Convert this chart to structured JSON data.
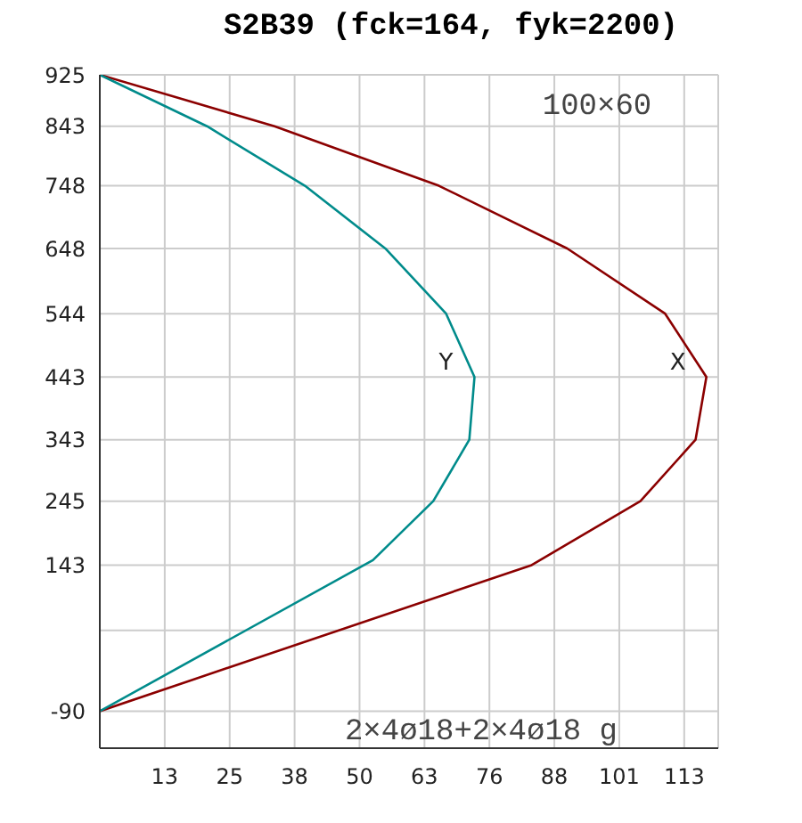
{
  "chart_data": {
    "type": "line",
    "title": "S2B39  (fck=164, fyk=2200)",
    "annotations": [
      "100×60",
      "2×4ø18+2×4ø18 g"
    ],
    "xlim": [
      0,
      120
    ],
    "xticks": [
      {
        "value": 12.6,
        "label": "13"
      },
      {
        "value": 25.2,
        "label": "25"
      },
      {
        "value": 37.8,
        "label": "38"
      },
      {
        "value": 50.4,
        "label": "50"
      },
      {
        "value": 63,
        "label": "63"
      },
      {
        "value": 75.6,
        "label": "76"
      },
      {
        "value": 88.2,
        "label": "88"
      },
      {
        "value": 100.8,
        "label": "101"
      },
      {
        "value": 113.4,
        "label": "113"
      },
      {
        "value": 120,
        "label": null
      }
    ],
    "ylim": [
      -149,
      925
    ],
    "yticks": [
      -90,
      {
        "value": 39,
        "label": null
      },
      143,
      245,
      343,
      443,
      544,
      648,
      748,
      843,
      925
    ],
    "grid": true,
    "legend": false,
    "marker": "none",
    "line_style": "solid",
    "series": [
      {
        "name": "X",
        "color": "#8b0000",
        "x": [
          0,
          33.9,
          65.8,
          90.7,
          109.7,
          117.7,
          115.6,
          104.9,
          83.8,
          0
        ],
        "values": [
          925,
          843,
          748,
          648,
          544,
          443,
          343,
          245,
          143,
          -90
        ]
      },
      {
        "name": "Y",
        "color": "#008b8b",
        "x": [
          0,
          20.8,
          39.8,
          55.4,
          67.2,
          72.7,
          71.7,
          64.7,
          53,
          0
        ],
        "values": [
          925,
          843,
          748,
          648,
          544,
          443,
          343,
          245,
          151,
          -90
        ]
      }
    ]
  }
}
